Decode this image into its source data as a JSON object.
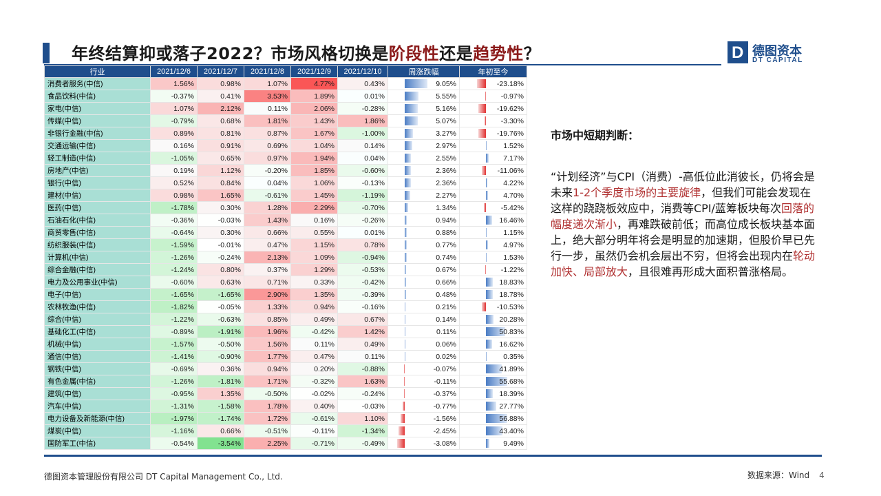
{
  "title": {
    "part1": "年终结算抑或落子2022？市场风格切换是",
    "hl1": "阶段性",
    "part2": "还是",
    "hl2": "趋势性",
    "part3": "？"
  },
  "logo": {
    "cn": "德图资本",
    "en": "DT CAPITAL",
    "mark": "D"
  },
  "table": {
    "headers": [
      "行业",
      "2021/12/6",
      "2021/12/7",
      "2021/12/8",
      "2021/12/9",
      "2021/12/10",
      "周涨跌幅",
      "年初至今"
    ],
    "rows": [
      [
        "消费者服务(中信)",
        1.56,
        0.98,
        1.07,
        4.77,
        0.43,
        9.05,
        -23.18
      ],
      [
        "食品饮料(中信)",
        -0.37,
        0.41,
        3.53,
        1.89,
        0.01,
        5.55,
        -0.97
      ],
      [
        "家电(中信)",
        1.07,
        2.12,
        0.11,
        2.06,
        -0.28,
        5.16,
        -19.62
      ],
      [
        "传媒(中信)",
        -0.79,
        0.68,
        1.81,
        1.43,
        1.86,
        5.07,
        -3.3
      ],
      [
        "非银行金融(中信)",
        0.89,
        0.81,
        0.87,
        1.67,
        -1.0,
        3.27,
        -19.76
      ],
      [
        "交通运输(中信)",
        0.16,
        0.91,
        0.69,
        1.04,
        0.14,
        2.97,
        1.52
      ],
      [
        "轻工制造(中信)",
        -1.05,
        0.65,
        0.97,
        1.94,
        0.04,
        2.55,
        7.17
      ],
      [
        "房地产(中信)",
        0.19,
        1.12,
        -0.2,
        1.85,
        -0.6,
        2.36,
        -11.06
      ],
      [
        "银行(中信)",
        0.52,
        0.84,
        0.04,
        1.06,
        -0.13,
        2.36,
        4.22
      ],
      [
        "建材(中信)",
        0.98,
        1.65,
        -0.61,
        1.45,
        -1.19,
        2.27,
        4.7
      ],
      [
        "医药(中信)",
        -1.78,
        0.3,
        1.28,
        2.29,
        -0.7,
        1.34,
        -5.42
      ],
      [
        "石油石化(中信)",
        -0.36,
        -0.03,
        1.43,
        0.16,
        -0.26,
        0.94,
        16.46
      ],
      [
        "商贸零售(中信)",
        -0.64,
        0.3,
        0.66,
        0.55,
        0.01,
        0.88,
        1.15
      ],
      [
        "纺织服装(中信)",
        -1.59,
        -0.01,
        0.47,
        1.15,
        0.78,
        0.77,
        4.97
      ],
      [
        "计算机(中信)",
        -1.26,
        -0.24,
        2.13,
        1.09,
        -0.94,
        0.74,
        1.53
      ],
      [
        "综合金融(中信)",
        -1.24,
        0.8,
        0.37,
        1.29,
        -0.53,
        0.67,
        -1.22
      ],
      [
        "电力及公用事业(中信)",
        -0.6,
        0.63,
        0.71,
        0.33,
        -0.42,
        0.66,
        18.83
      ],
      [
        "电子(中信)",
        -1.65,
        -1.65,
        2.9,
        1.35,
        -0.39,
        0.48,
        18.78
      ],
      [
        "农林牧渔(中信)",
        -1.82,
        -0.05,
        1.33,
        0.94,
        -0.16,
        0.21,
        -10.53
      ],
      [
        "综合(中信)",
        -1.22,
        -0.63,
        0.85,
        0.49,
        0.67,
        0.14,
        20.28
      ],
      [
        "基础化工(中信)",
        -0.89,
        -1.91,
        1.96,
        -0.42,
        1.42,
        0.11,
        50.83
      ],
      [
        "机械(中信)",
        -1.57,
        -0.5,
        1.56,
        0.11,
        0.49,
        0.06,
        16.62
      ],
      [
        "通信(中信)",
        -1.41,
        -0.9,
        1.77,
        0.47,
        0.11,
        0.02,
        0.35
      ],
      [
        "钢铁(中信)",
        -0.69,
        0.36,
        0.94,
        0.2,
        -0.88,
        -0.07,
        41.89
      ],
      [
        "有色金属(中信)",
        -1.26,
        -1.81,
        1.71,
        -0.32,
        1.63,
        -0.11,
        55.68
      ],
      [
        "建筑(中信)",
        -0.95,
        1.35,
        -0.5,
        -0.02,
        -0.24,
        -0.37,
        18.39
      ],
      [
        "汽车(中信)",
        -1.31,
        -1.58,
        1.78,
        0.4,
        -0.03,
        -0.77,
        27.77
      ],
      [
        "电力设备及新能源(中信)",
        -1.97,
        -1.74,
        1.72,
        -0.61,
        1.1,
        -1.56,
        56.88
      ],
      [
        "煤炭(中信)",
        -1.16,
        0.66,
        -0.51,
        -0.11,
        -1.34,
        -2.45,
        43.4
      ],
      [
        "国防军工(中信)",
        -0.54,
        -3.54,
        2.25,
        -0.71,
        -0.49,
        -3.08,
        9.49
      ]
    ]
  },
  "side": {
    "title": "市场中短期判断：",
    "s1": "“计划经济”与CPI（消费）-高低位此消彼长，仍将会是未来",
    "r1": "1-2个季度市场的主要旋律",
    "s2": "，但我们可能会发现在这样的跷跷板效应中，消费等CPI/蓝筹板块每次",
    "r2": "回落的幅度递次渐小",
    "s3": "，再难跌破前低；而高位成长板块基本面上，绝大部分明年将会是明显的加速期，但股价早已先行一步，虽然仍会机会层出不穷，但将会出现内在",
    "r3": "轮动加快、局部放大",
    "s4": "，且很难再形成大面积普涨格局。"
  },
  "footer": {
    "company": "德图资本管理股份有限公司  DT Capital Management Co., Ltd.",
    "source": "数据来源：Wind",
    "page": "4"
  },
  "colors": {
    "accent": "#1f4e8c",
    "highlight": "#8b1a1a",
    "nameCell": "#a9dfd5",
    "barPos": "#4a7cc4",
    "barNeg": "#e03030"
  }
}
